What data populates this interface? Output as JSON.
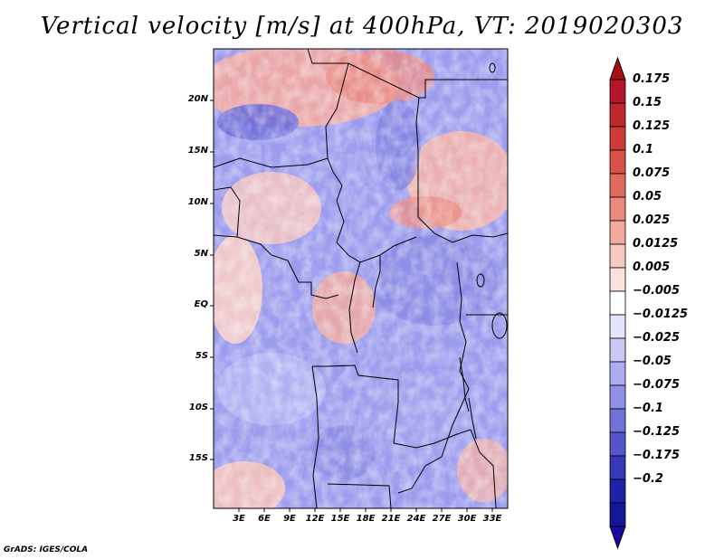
{
  "title": "Vertical velocity [m/s] at 400hPa, VT: 2019020303",
  "map": {
    "lat_labels": [
      "20N",
      "15N",
      "10N",
      "5N",
      "EQ",
      "5S",
      "10S",
      "15S"
    ],
    "lon_labels": [
      "3E",
      "6E",
      "9E",
      "12E",
      "15E",
      "18E",
      "21E",
      "24E",
      "27E",
      "30E",
      "33E"
    ]
  },
  "colorbar": {
    "labels": [
      "0.175",
      "0.15",
      "0.125",
      "0.1",
      "0.075",
      "0.05",
      "0.025",
      "0.0125",
      "0.005",
      "−0.005",
      "−0.0125",
      "−0.025",
      "−0.05",
      "−0.075",
      "−0.1",
      "−0.125",
      "−0.175",
      "−0.2"
    ],
    "colors": [
      "#b2182b",
      "#c0272d",
      "#cd3b39",
      "#d95147",
      "#e06b5d",
      "#e98a7a",
      "#f1aa9c",
      "#f7cac0",
      "#fbe2dc",
      "#ffffff",
      "#e4e4fb",
      "#c9c9f6",
      "#adadf0",
      "#8f8fe6",
      "#7171da",
      "#5454cc",
      "#3737bb",
      "#2020a8",
      "#16169a"
    ],
    "top_arrow_color": "#a50f15",
    "bottom_arrow_color": "#1a0aa0"
  },
  "footer": {
    "credit": "GrADS: IGES/COLA"
  }
}
